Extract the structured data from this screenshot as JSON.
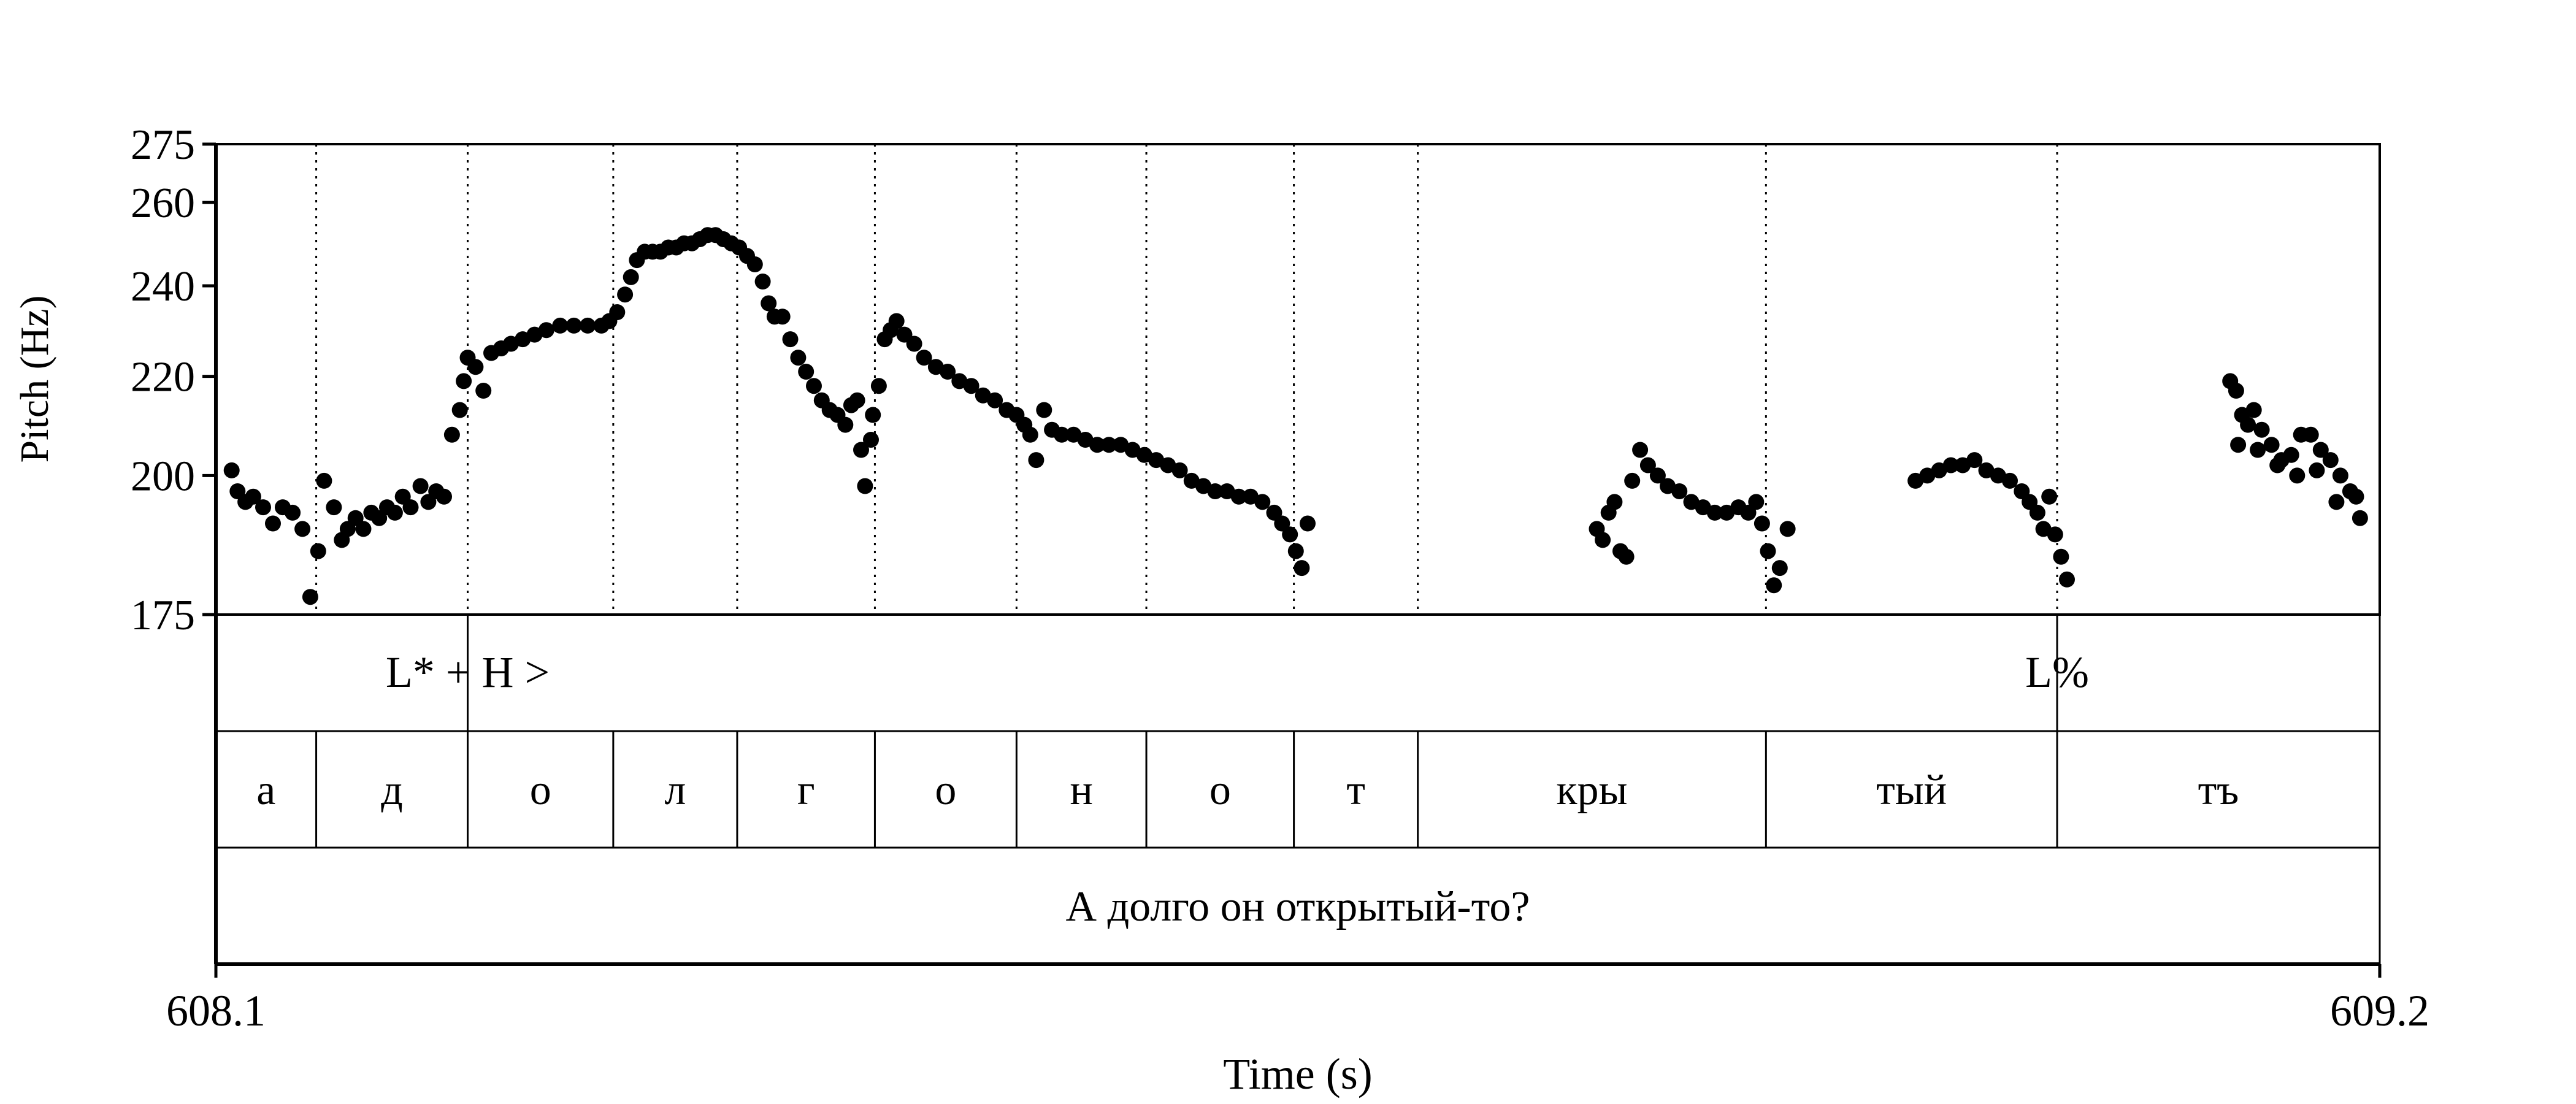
{
  "chart_data": {
    "type": "scatter",
    "xlabel": "Time (s)",
    "ylabel": "Pitch (Hz)",
    "xlim": [
      608.1,
      609.2
    ],
    "ylim": [
      175,
      275
    ],
    "y_scale": "log",
    "x_tick_labels": [
      "608.1",
      "609.2"
    ],
    "y_ticks": [
      175,
      200,
      220,
      240,
      260,
      275
    ],
    "boundaries": [
      608.151,
      608.228,
      608.302,
      608.365,
      608.435,
      608.507,
      608.573,
      608.648,
      608.711,
      608.888,
      609.036
    ],
    "tone_tier": [
      {
        "label": "L* + H >",
        "x": 608.228
      },
      {
        "label": "L%",
        "x": 609.036
      }
    ],
    "segment_tier": [
      {
        "label": "а",
        "start": 608.1,
        "end": 608.151
      },
      {
        "label": "д",
        "start": 608.151,
        "end": 608.228
      },
      {
        "label": "о",
        "start": 608.228,
        "end": 608.302
      },
      {
        "label": "л",
        "start": 608.302,
        "end": 608.365
      },
      {
        "label": "г",
        "start": 608.365,
        "end": 608.435
      },
      {
        "label": "о",
        "start": 608.435,
        "end": 608.507
      },
      {
        "label": "н",
        "start": 608.507,
        "end": 608.573
      },
      {
        "label": "о",
        "start": 608.573,
        "end": 608.648
      },
      {
        "label": "т",
        "start": 608.648,
        "end": 608.711
      },
      {
        "label": "кры",
        "start": 608.711,
        "end": 608.888
      },
      {
        "label": "тый",
        "start": 608.888,
        "end": 609.036
      },
      {
        "label": "тъ",
        "start": 609.036,
        "end": 609.2
      }
    ],
    "sentence_tier": [
      {
        "label": "А долго он открытый-то?",
        "start": 608.1,
        "end": 609.2
      }
    ],
    "series": [
      {
        "x": [
          608.108,
          608.111,
          608.115,
          608.119,
          608.124,
          608.129,
          608.134,
          608.139,
          608.144,
          608.148,
          608.152,
          608.155,
          608.16,
          608.164,
          608.167,
          608.171,
          608.175,
          608.179,
          608.183,
          608.187,
          608.191,
          608.195,
          608.199,
          608.204,
          608.208,
          608.212,
          608.216,
          608.22,
          608.224,
          608.226,
          608.228,
          608.232,
          608.236,
          608.24,
          608.245,
          608.25,
          608.256,
          608.262,
          608.268,
          608.275,
          608.282,
          608.289,
          608.296,
          608.3,
          608.304,
          608.308,
          608.311,
          608.314,
          608.318,
          608.322,
          608.326,
          608.33,
          608.334,
          608.338,
          608.342,
          608.346,
          608.35,
          608.354,
          608.358,
          608.362,
          608.366,
          608.37,
          608.374,
          608.378,
          608.381,
          608.384,
          608.388,
          608.392,
          608.396,
          608.4,
          608.404,
          608.408,
          608.412,
          608.416,
          608.42,
          608.423,
          608.426,
          608.428,
          608.43,
          608.433,
          608.434,
          608.437,
          608.44,
          608.443,
          608.446,
          608.45,
          608.455,
          608.46,
          608.466,
          608.472,
          608.478,
          608.484,
          608.49,
          608.496,
          608.502,
          608.507,
          608.511,
          608.514,
          608.517,
          608.521,
          608.525,
          608.53,
          608.536,
          608.542,
          608.548,
          608.554,
          608.56,
          608.566,
          608.572,
          608.578,
          608.584,
          608.59,
          608.596,
          608.602,
          608.608,
          608.614,
          608.62,
          608.626,
          608.632,
          608.638,
          608.642,
          608.646,
          608.649,
          608.652,
          608.655,
          608.802,
          608.805,
          608.808,
          608.811,
          608.814,
          608.817,
          608.82,
          608.824,
          608.828,
          608.833,
          608.838,
          608.844,
          608.85,
          608.856,
          608.862,
          608.868,
          608.874,
          608.879,
          608.883,
          608.886,
          608.889,
          608.892,
          608.895,
          608.899,
          608.964,
          608.97,
          608.976,
          608.982,
          608.988,
          608.994,
          609.0,
          609.006,
          609.012,
          609.018,
          609.022,
          609.026,
          609.029,
          609.032,
          609.035,
          609.038,
          609.041,
          609.124,
          609.127,
          609.13,
          609.133,
          609.136,
          609.14,
          609.145,
          609.15,
          609.155,
          609.16,
          609.165,
          609.17,
          609.175,
          609.18,
          609.185,
          609.19,
          609.128,
          609.138,
          609.148,
          609.158,
          609.168,
          609.178,
          609.188
        ],
        "y": [
          201,
          197,
          195,
          196,
          194,
          191,
          194,
          193,
          190,
          178,
          186,
          199,
          194,
          188,
          190,
          192,
          190,
          193,
          192,
          194,
          193,
          196,
          194,
          198,
          195,
          197,
          196,
          208,
          213,
          219,
          224,
          222,
          217,
          225,
          226,
          227,
          228,
          229,
          230,
          231,
          231,
          231,
          231,
          232,
          234,
          238,
          242,
          246,
          248,
          248,
          248,
          249,
          249,
          250,
          250,
          251,
          252,
          252,
          251,
          250,
          249,
          247,
          245,
          241,
          236,
          233,
          233,
          228,
          224,
          221,
          218,
          215,
          213,
          212,
          210,
          214,
          215,
          205,
          198,
          207,
          212,
          218,
          228,
          230,
          232,
          229,
          227,
          224,
          222,
          221,
          219,
          218,
          216,
          215,
          213,
          212,
          210,
          208,
          203,
          213,
          209,
          208,
          208,
          207,
          206,
          206,
          206,
          205,
          204,
          203,
          202,
          201,
          199,
          198,
          197,
          197,
          196,
          196,
          195,
          193,
          191,
          189,
          186,
          183,
          191,
          190,
          188,
          193,
          195,
          186,
          185,
          199,
          205,
          202,
          200,
          198,
          197,
          195,
          194,
          193,
          193,
          194,
          193,
          195,
          191,
          186,
          180,
          183,
          190,
          199,
          200,
          201,
          202,
          202,
          203,
          201,
          200,
          199,
          197,
          195,
          193,
          190,
          196,
          189,
          185,
          181,
          219,
          217,
          212,
          210,
          213,
          209,
          206,
          203,
          204,
          208,
          208,
          205,
          203,
          200,
          197,
          192,
          206,
          205,
          202,
          200,
          201,
          195,
          196
        ]
      }
    ]
  }
}
